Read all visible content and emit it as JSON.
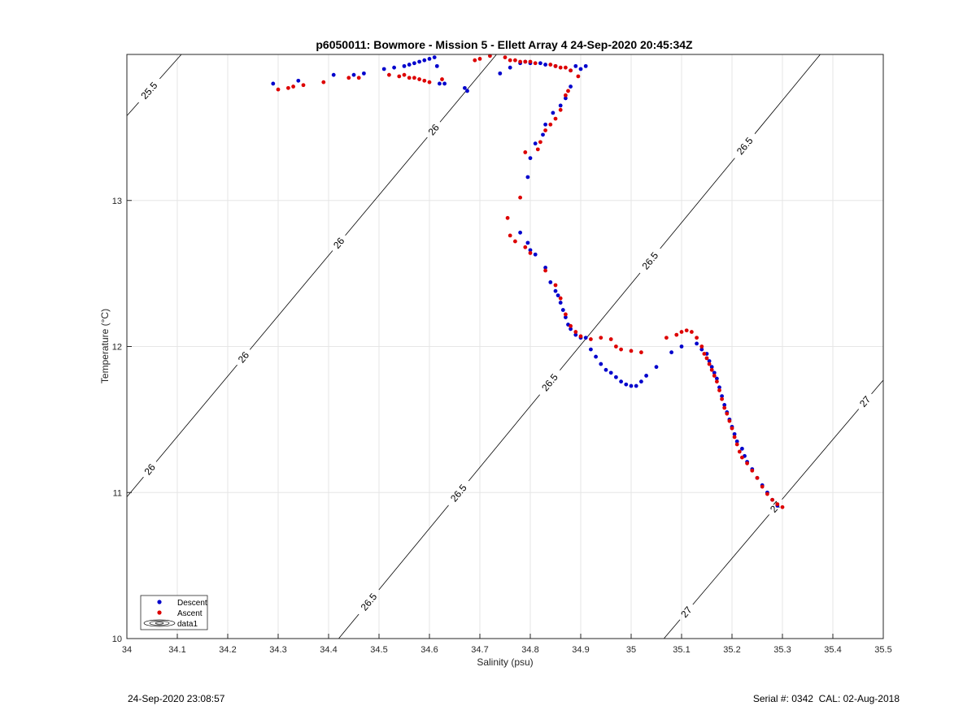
{
  "chart_data": {
    "type": "scatter",
    "title": "p6050011: Bowmore - Mission 5 - Ellett Array 4 24-Sep-2020 20:45:34Z",
    "xlabel": "Salinity (psu)",
    "ylabel": "Temperature (°C)",
    "xlim": [
      34,
      35.5
    ],
    "ylim": [
      10,
      14
    ],
    "xticks": [
      34,
      34.1,
      34.2,
      34.3,
      34.4,
      34.5,
      34.6,
      34.7,
      34.8,
      34.9,
      35,
      35.1,
      35.2,
      35.3,
      35.4,
      35.5
    ],
    "xtick_labels": [
      "34",
      "34.1",
      "34.2",
      "34.3",
      "34.4",
      "34.5",
      "34.6",
      "34.7",
      "34.8",
      "34.9",
      "35",
      "35.1",
      "35.2",
      "35.3",
      "35.4",
      "35.5"
    ],
    "yticks": [
      10,
      11,
      12,
      13
    ],
    "ytick_labels": [
      "10",
      "11",
      "12",
      "13"
    ],
    "grid": true,
    "legend": {
      "placement": "bottom-left",
      "entries": [
        "Descent",
        "Ascent",
        "data1"
      ]
    },
    "colors": {
      "descent": "#0000cc",
      "ascent": "#dd0000",
      "contour": "#000000",
      "grid": "#e6e6e6"
    },
    "series": [
      {
        "name": "Descent",
        "points": [
          [
            34.29,
            13.8
          ],
          [
            34.34,
            13.82
          ],
          [
            34.41,
            13.86
          ],
          [
            34.45,
            13.86
          ],
          [
            34.47,
            13.87
          ],
          [
            34.51,
            13.9
          ],
          [
            34.53,
            13.91
          ],
          [
            34.55,
            13.92
          ],
          [
            34.56,
            13.93
          ],
          [
            34.57,
            13.94
          ],
          [
            34.58,
            13.95
          ],
          [
            34.59,
            13.96
          ],
          [
            34.6,
            13.97
          ],
          [
            34.61,
            13.98
          ],
          [
            34.615,
            13.92
          ],
          [
            34.62,
            13.8
          ],
          [
            34.63,
            13.8
          ],
          [
            34.67,
            13.77
          ],
          [
            34.675,
            13.75
          ],
          [
            34.74,
            13.87
          ],
          [
            34.76,
            13.91
          ],
          [
            34.78,
            13.94
          ],
          [
            34.79,
            13.95
          ],
          [
            34.8,
            13.94
          ],
          [
            34.82,
            13.94
          ],
          [
            34.83,
            13.93
          ],
          [
            34.85,
            13.92
          ],
          [
            34.88,
            13.89
          ],
          [
            34.89,
            13.92
          ],
          [
            34.9,
            13.9
          ],
          [
            34.91,
            13.92
          ],
          [
            34.88,
            13.78
          ],
          [
            34.87,
            13.7
          ],
          [
            34.86,
            13.65
          ],
          [
            34.845,
            13.6
          ],
          [
            34.83,
            13.52
          ],
          [
            34.825,
            13.45
          ],
          [
            34.81,
            13.39
          ],
          [
            34.8,
            13.29
          ],
          [
            34.795,
            13.16
          ],
          [
            34.78,
            12.78
          ],
          [
            34.795,
            12.71
          ],
          [
            34.8,
            12.66
          ],
          [
            34.81,
            12.63
          ],
          [
            34.83,
            12.54
          ],
          [
            34.84,
            12.44
          ],
          [
            34.85,
            12.38
          ],
          [
            34.855,
            12.35
          ],
          [
            34.86,
            12.3
          ],
          [
            34.865,
            12.25
          ],
          [
            34.87,
            12.2
          ],
          [
            34.875,
            12.15
          ],
          [
            34.88,
            12.12
          ],
          [
            34.89,
            12.08
          ],
          [
            34.9,
            12.06
          ],
          [
            34.91,
            12.06
          ],
          [
            34.92,
            11.98
          ],
          [
            34.93,
            11.93
          ],
          [
            34.94,
            11.88
          ],
          [
            34.95,
            11.84
          ],
          [
            34.96,
            11.82
          ],
          [
            34.97,
            11.79
          ],
          [
            34.98,
            11.76
          ],
          [
            34.99,
            11.74
          ],
          [
            35.0,
            11.73
          ],
          [
            35.01,
            11.73
          ],
          [
            35.02,
            11.76
          ],
          [
            35.03,
            11.8
          ],
          [
            35.05,
            11.86
          ],
          [
            35.08,
            11.96
          ],
          [
            35.1,
            12.0
          ],
          [
            35.13,
            12.02
          ],
          [
            35.14,
            11.98
          ],
          [
            35.15,
            11.95
          ],
          [
            35.155,
            11.9
          ],
          [
            35.16,
            11.86
          ],
          [
            35.165,
            11.82
          ],
          [
            35.17,
            11.78
          ],
          [
            35.175,
            11.72
          ],
          [
            35.18,
            11.66
          ],
          [
            35.185,
            11.6
          ],
          [
            35.19,
            11.55
          ],
          [
            35.195,
            11.5
          ],
          [
            35.2,
            11.45
          ],
          [
            35.205,
            11.4
          ],
          [
            35.21,
            11.35
          ],
          [
            35.22,
            11.3
          ],
          [
            35.225,
            11.25
          ],
          [
            35.23,
            11.21
          ],
          [
            35.24,
            11.16
          ],
          [
            35.25,
            11.1
          ],
          [
            35.26,
            11.05
          ],
          [
            35.27,
            11.0
          ],
          [
            35.28,
            10.95
          ],
          [
            35.29,
            10.91
          ]
        ]
      },
      {
        "name": "Ascent",
        "points": [
          [
            34.3,
            13.76
          ],
          [
            34.32,
            13.77
          ],
          [
            34.33,
            13.78
          ],
          [
            34.35,
            13.79
          ],
          [
            34.39,
            13.81
          ],
          [
            34.44,
            13.84
          ],
          [
            34.46,
            13.84
          ],
          [
            34.52,
            13.86
          ],
          [
            34.54,
            13.85
          ],
          [
            34.55,
            13.86
          ],
          [
            34.56,
            13.84
          ],
          [
            34.57,
            13.84
          ],
          [
            34.58,
            13.83
          ],
          [
            34.59,
            13.82
          ],
          [
            34.6,
            13.81
          ],
          [
            34.625,
            13.83
          ],
          [
            34.69,
            13.96
          ],
          [
            34.7,
            13.97
          ],
          [
            34.72,
            13.99
          ],
          [
            34.75,
            13.98
          ],
          [
            34.76,
            13.96
          ],
          [
            34.77,
            13.96
          ],
          [
            34.78,
            13.95
          ],
          [
            34.79,
            13.95
          ],
          [
            34.8,
            13.95
          ],
          [
            34.81,
            13.94
          ],
          [
            34.84,
            13.93
          ],
          [
            34.85,
            13.92
          ],
          [
            34.86,
            13.91
          ],
          [
            34.87,
            13.91
          ],
          [
            34.88,
            13.89
          ],
          [
            34.895,
            13.85
          ],
          [
            34.875,
            13.75
          ],
          [
            34.87,
            13.72
          ],
          [
            34.86,
            13.62
          ],
          [
            34.85,
            13.56
          ],
          [
            34.84,
            13.52
          ],
          [
            34.83,
            13.48
          ],
          [
            34.82,
            13.4
          ],
          [
            34.815,
            13.35
          ],
          [
            34.79,
            13.33
          ],
          [
            34.78,
            13.02
          ],
          [
            34.755,
            12.88
          ],
          [
            34.76,
            12.76
          ],
          [
            34.77,
            12.72
          ],
          [
            34.79,
            12.68
          ],
          [
            34.8,
            12.64
          ],
          [
            34.83,
            12.52
          ],
          [
            34.85,
            12.42
          ],
          [
            34.86,
            12.33
          ],
          [
            34.87,
            12.22
          ],
          [
            34.88,
            12.14
          ],
          [
            34.89,
            12.1
          ],
          [
            34.9,
            12.07
          ],
          [
            34.92,
            12.05
          ],
          [
            34.94,
            12.06
          ],
          [
            34.96,
            12.05
          ],
          [
            34.97,
            12.0
          ],
          [
            34.98,
            11.98
          ],
          [
            35.0,
            11.97
          ],
          [
            35.02,
            11.96
          ],
          [
            35.07,
            12.06
          ],
          [
            35.09,
            12.08
          ],
          [
            35.1,
            12.1
          ],
          [
            35.11,
            12.11
          ],
          [
            35.12,
            12.1
          ],
          [
            35.13,
            12.06
          ],
          [
            35.14,
            12.0
          ],
          [
            35.145,
            11.95
          ],
          [
            35.15,
            11.92
          ],
          [
            35.155,
            11.88
          ],
          [
            35.16,
            11.84
          ],
          [
            35.165,
            11.8
          ],
          [
            35.17,
            11.76
          ],
          [
            35.175,
            11.7
          ],
          [
            35.18,
            11.64
          ],
          [
            35.185,
            11.58
          ],
          [
            35.19,
            11.54
          ],
          [
            35.195,
            11.49
          ],
          [
            35.2,
            11.44
          ],
          [
            35.205,
            11.38
          ],
          [
            35.21,
            11.33
          ],
          [
            35.215,
            11.28
          ],
          [
            35.22,
            11.24
          ],
          [
            35.23,
            11.2
          ],
          [
            35.24,
            11.15
          ],
          [
            35.25,
            11.1
          ],
          [
            35.26,
            11.04
          ],
          [
            35.27,
            10.99
          ],
          [
            35.28,
            10.95
          ],
          [
            35.29,
            10.92
          ],
          [
            35.3,
            10.9
          ]
        ]
      }
    ],
    "contours": [
      {
        "label": "25.5",
        "path": [
          [
            34.0,
            13.58
          ],
          [
            34.108,
            14.0
          ]
        ],
        "labels": [
          {
            "text": "25.5",
            "at": [
              34.045,
              13.75
            ]
          }
        ]
      },
      {
        "label": "26",
        "path": [
          [
            34.0,
            10.97
          ],
          [
            34.733,
            14.0
          ]
        ],
        "labels": [
          {
            "text": "26",
            "at": [
              34.045,
              11.16
            ]
          },
          {
            "text": "26",
            "at": [
              34.23,
              11.93
            ]
          },
          {
            "text": "26",
            "at": [
              34.42,
              12.71
            ]
          },
          {
            "text": "26",
            "at": [
              34.61,
              13.48
            ]
          }
        ]
      },
      {
        "label": "26.5",
        "path": [
          [
            34.42,
            10.0
          ],
          [
            35.375,
            14.0
          ]
        ],
        "labels": [
          {
            "text": "26.5",
            "at": [
              34.48,
              10.25
            ]
          },
          {
            "text": "26.5",
            "at": [
              34.66,
              10.99
            ]
          },
          {
            "text": "26.5",
            "at": [
              34.84,
              11.75
            ]
          },
          {
            "text": "26.5",
            "at": [
              35.04,
              12.58
            ]
          },
          {
            "text": "26.5",
            "at": [
              35.23,
              13.36
            ]
          }
        ]
      },
      {
        "label": "27",
        "path": [
          [
            35.065,
            10.0
          ],
          [
            35.5,
            11.77
          ]
        ],
        "labels": [
          {
            "text": "27",
            "at": [
              35.11,
              10.18
            ]
          },
          {
            "text": "27",
            "at": [
              35.28,
              10.92
            ]
          },
          {
            "text": "27",
            "at": [
              35.465,
              11.62
            ]
          }
        ]
      }
    ]
  },
  "footer": {
    "left": "24-Sep-2020 23:08:57",
    "right": "Serial #: 0342  CAL: 02-Aug-2018"
  }
}
